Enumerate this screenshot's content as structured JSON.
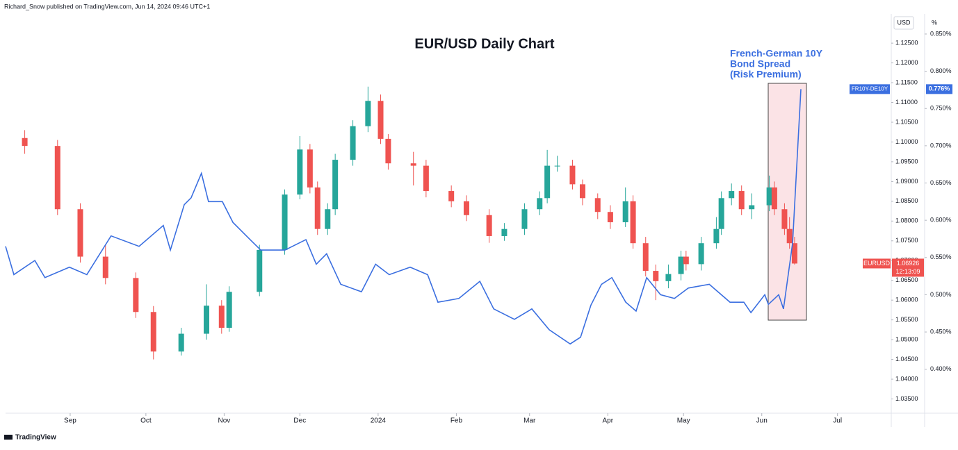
{
  "header": {
    "byline": "Richard_Snow published on TradingView.com, Jun 14, 2024 09:46 UTC+1",
    "logo": "TradingView"
  },
  "chart_data": {
    "type": "candlestick",
    "title": "EUR/USD Daily Chart",
    "annotation": [
      "French-German 10Y",
      "Bond Spread",
      "(Risk Premium)"
    ],
    "y_unit": "USD",
    "y2_unit": "%",
    "xlim": [
      5.4,
      356.3
    ],
    "xticks": [
      {
        "value": 31,
        "label": "Sep"
      },
      {
        "value": 61,
        "label": "Oct"
      },
      {
        "value": 92,
        "label": "Nov"
      },
      {
        "value": 122,
        "label": "Dec"
      },
      {
        "value": 153,
        "label": "2024"
      },
      {
        "value": 184,
        "label": "Feb"
      },
      {
        "value": 213,
        "label": "Mar"
      },
      {
        "value": 244,
        "label": "Apr"
      },
      {
        "value": 274,
        "label": "May"
      },
      {
        "value": 305,
        "label": "Jun"
      },
      {
        "value": 335,
        "label": "Jul"
      }
    ],
    "ylim": [
      1.0314,
      1.1324
    ],
    "yticks": [
      {
        "value": 1.035,
        "label": "1.03500"
      },
      {
        "value": 1.04,
        "label": "1.04000"
      },
      {
        "value": 1.045,
        "label": "1.04500"
      },
      {
        "value": 1.05,
        "label": "1.05000"
      },
      {
        "value": 1.055,
        "label": "1.05500"
      },
      {
        "value": 1.06,
        "label": "1.06000"
      },
      {
        "value": 1.065,
        "label": "1.06500"
      },
      {
        "value": 1.07,
        "label": "1.07000"
      },
      {
        "value": 1.075,
        "label": "1.07500"
      },
      {
        "value": 1.08,
        "label": "1.08000"
      },
      {
        "value": 1.085,
        "label": "1.08500"
      },
      {
        "value": 1.09,
        "label": "1.09000"
      },
      {
        "value": 1.095,
        "label": "1.09500"
      },
      {
        "value": 1.1,
        "label": "1.10000"
      },
      {
        "value": 1.105,
        "label": "1.10500"
      },
      {
        "value": 1.11,
        "label": "1.11000"
      },
      {
        "value": 1.115,
        "label": "1.11500"
      },
      {
        "value": 1.12,
        "label": "1.12000"
      },
      {
        "value": 1.125,
        "label": "1.12500"
      }
    ],
    "y2lim": [
      0.341,
      0.877
    ],
    "y2ticks": [
      {
        "value": 0.4,
        "label": "0.400%"
      },
      {
        "value": 0.45,
        "label": "0.450%"
      },
      {
        "value": 0.5,
        "label": "0.500%"
      },
      {
        "value": 0.55,
        "label": "0.550%"
      },
      {
        "value": 0.6,
        "label": "0.600%"
      },
      {
        "value": 0.65,
        "label": "0.650%"
      },
      {
        "value": 0.7,
        "label": "0.700%"
      },
      {
        "value": 0.75,
        "label": "0.750%"
      },
      {
        "value": 0.8,
        "label": "0.800%"
      },
      {
        "value": 0.85,
        "label": "0.850%"
      }
    ],
    "series": [
      {
        "name": "EURUSD",
        "type": "candlestick",
        "up_color": "#26a69a",
        "down_color": "#ef5350",
        "countdown": "12:13:09",
        "last_value_label": "1.06926",
        "x": [
          13,
          26,
          35,
          45,
          57,
          64,
          75,
          85,
          91,
          94,
          106,
          116,
          122,
          126,
          129,
          133,
          136,
          143,
          149,
          154,
          157,
          167,
          172,
          182,
          188,
          197,
          203,
          211,
          217,
          220,
          224,
          230,
          234,
          240,
          245,
          251,
          254,
          259,
          263,
          268,
          273,
          275,
          281,
          287,
          289,
          293,
          297,
          301,
          308,
          310,
          314,
          316,
          318
        ],
        "open": [
          1.101,
          1.099,
          1.083,
          1.071,
          1.0656,
          1.057,
          1.047,
          1.0515,
          1.0586,
          1.053,
          1.0621,
          1.0727,
          1.0867,
          1.0981,
          1.0885,
          1.078,
          1.083,
          1.0955,
          1.104,
          1.1104,
          1.1008,
          1.0946,
          1.094,
          1.0876,
          1.085,
          1.0815,
          1.0762,
          1.078,
          1.083,
          1.0858,
          1.094,
          1.094,
          1.0893,
          1.0858,
          1.0823,
          1.0797,
          1.085,
          1.0744,
          1.0674,
          1.0648,
          1.0666,
          1.071,
          1.0691,
          1.0744,
          1.078,
          1.0858,
          1.0876,
          1.083,
          1.084,
          1.0885,
          1.083,
          1.078,
          1.0744
        ],
        "high": [
          1.103,
          1.1005,
          1.0845,
          1.074,
          1.067,
          1.0585,
          1.053,
          1.064,
          1.06,
          1.0635,
          1.074,
          1.088,
          1.1015,
          1.0995,
          1.09,
          1.0845,
          1.097,
          1.1055,
          1.114,
          1.112,
          1.102,
          1.0975,
          1.0955,
          1.089,
          1.0865,
          1.083,
          1.0795,
          1.0845,
          1.0875,
          1.098,
          1.0965,
          1.0955,
          1.0905,
          1.087,
          1.084,
          1.0885,
          1.0865,
          1.076,
          1.069,
          1.069,
          1.0725,
          1.0725,
          1.076,
          1.081,
          1.0875,
          1.0895,
          1.089,
          1.087,
          1.0915,
          1.09,
          1.0845,
          1.081,
          1.076
        ],
        "low": [
          1.097,
          1.0815,
          1.0695,
          1.064,
          1.0555,
          1.045,
          1.046,
          1.05,
          1.0515,
          1.052,
          1.061,
          1.0715,
          1.0855,
          1.087,
          1.0765,
          1.0765,
          1.0815,
          1.094,
          1.1025,
          1.0995,
          1.093,
          1.089,
          1.086,
          1.0835,
          1.08,
          1.0745,
          1.075,
          1.0765,
          1.0815,
          1.0845,
          1.0925,
          1.088,
          1.084,
          1.0805,
          1.078,
          1.0785,
          1.073,
          1.066,
          1.06,
          1.063,
          1.065,
          1.0675,
          1.0675,
          1.073,
          1.0765,
          1.084,
          1.0815,
          1.0805,
          1.0825,
          1.0815,
          1.0765,
          1.073,
          1.069
        ],
        "close": [
          1.099,
          1.083,
          1.071,
          1.0656,
          1.057,
          1.047,
          1.0515,
          1.0586,
          1.053,
          1.0621,
          1.0727,
          1.0867,
          1.0981,
          1.0885,
          1.078,
          1.083,
          1.0955,
          1.104,
          1.1104,
          1.1008,
          1.0946,
          1.094,
          1.0876,
          1.085,
          1.0815,
          1.0762,
          1.078,
          1.083,
          1.0858,
          1.094,
          1.094,
          1.0893,
          1.0858,
          1.0823,
          1.0797,
          1.085,
          1.0744,
          1.0674,
          1.0648,
          1.0666,
          1.071,
          1.0691,
          1.0744,
          1.078,
          1.0858,
          1.0876,
          1.083,
          1.084,
          1.0885,
          1.083,
          1.078,
          1.0744,
          1.06926
        ]
      },
      {
        "name": "FR10Y-DE10Y",
        "type": "line",
        "axis": "y2",
        "color": "#3b6fe0",
        "last_value_label": "0.776%",
        "x": [
          5.4,
          8.7,
          17,
          21,
          30.7,
          37.6,
          47.2,
          58.3,
          67.9,
          70.7,
          76.2,
          78.9,
          83,
          85.8,
          91.3,
          95.5,
          102.3,
          106.5,
          116.1,
          124.4,
          128.5,
          132.6,
          138.2,
          146.4,
          152,
          157.4,
          165.7,
          172.6,
          176.7,
          185,
          193.3,
          198.8,
          207,
          213.9,
          220.8,
          229.1,
          233.2,
          237.3,
          241.5,
          245.6,
          251.1,
          255.2,
          259.4,
          264.9,
          270.4,
          275.9,
          284.2,
          292.4,
          297.9,
          300.7,
          306.2,
          307.6,
          311.7,
          313.6,
          317.2,
          320.5
        ],
        "values": [
          0.565,
          0.527,
          0.546,
          0.523,
          0.537,
          0.527,
          0.579,
          0.565,
          0.593,
          0.56,
          0.621,
          0.63,
          0.663,
          0.625,
          0.625,
          0.597,
          0.574,
          0.56,
          0.56,
          0.574,
          0.541,
          0.555,
          0.514,
          0.504,
          0.541,
          0.527,
          0.537,
          0.527,
          0.49,
          0.495,
          0.518,
          0.481,
          0.467,
          0.481,
          0.453,
          0.434,
          0.443,
          0.486,
          0.514,
          0.523,
          0.49,
          0.478,
          0.523,
          0.5,
          0.495,
          0.509,
          0.514,
          0.49,
          0.49,
          0.476,
          0.5,
          0.487,
          0.5,
          0.481,
          0.569,
          0.776
        ]
      }
    ]
  }
}
